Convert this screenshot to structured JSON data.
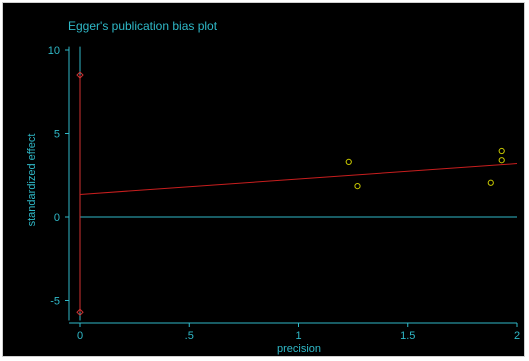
{
  "chart_data": {
    "type": "scatter",
    "title": "Egger's publication bias plot",
    "xlabel": "precision",
    "ylabel": "standardized effect",
    "xlim": [
      -0.05,
      2.02
    ],
    "ylim": [
      -6.2,
      10.5
    ],
    "xticks": [
      0,
      0.5,
      1,
      1.5,
      2
    ],
    "xtick_labels": [
      "0",
      ".5",
      "1",
      "1.5",
      "2"
    ],
    "yticks": [
      10,
      5,
      0,
      -5
    ],
    "ytick_labels": [
      "10",
      "5",
      "0",
      "-5"
    ],
    "points": [
      {
        "x": 1.23,
        "y": 3.3
      },
      {
        "x": 1.27,
        "y": 1.85
      },
      {
        "x": 1.88,
        "y": 2.05
      },
      {
        "x": 1.93,
        "y": 3.95
      },
      {
        "x": 1.93,
        "y": 3.4
      }
    ],
    "regression_line": {
      "x": [
        0,
        2
      ],
      "y": [
        1.35,
        3.2
      ]
    },
    "reference_line_y": 0,
    "intercept_ci": {
      "x": 0,
      "lower": -5.7,
      "upper": 8.5
    },
    "colors": {
      "background": "#000000",
      "axis_text": "#2fb9c8",
      "points": "#c8c800",
      "regression": "#c81e1e",
      "ci": "#d23232"
    },
    "grid": false,
    "legend": "none"
  }
}
